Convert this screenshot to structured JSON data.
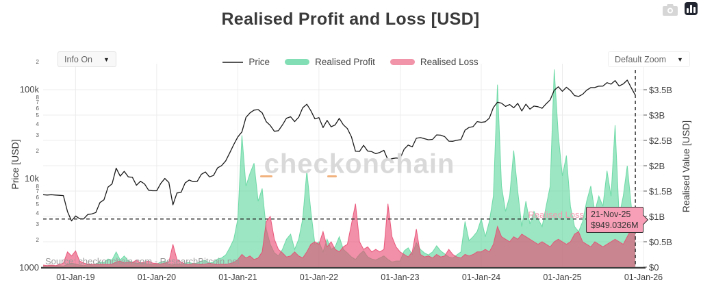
{
  "header": {
    "title": "Realised Profit and Loss [USD]"
  },
  "toolbar": {
    "camera_icon": "camera",
    "logo_icon": "plotly-bars"
  },
  "controls": {
    "info_dropdown": {
      "label": "Info On",
      "arrow": "▼"
    },
    "zoom_dropdown": {
      "label": "Default Zoom",
      "arrow": "▼"
    }
  },
  "legend": [
    {
      "label": "Price",
      "type": "line",
      "color": "#555555"
    },
    {
      "label": "Realised Profit",
      "type": "area",
      "color": "#82deb4"
    },
    {
      "label": "Realised Loss",
      "type": "area",
      "color": "#f193a9"
    }
  ],
  "watermark": {
    "text": "checkonchain"
  },
  "source": "Source: checkonchain.com - ResearchBitcoin.net",
  "annotations": {
    "loss_label": "Realised Loss",
    "tooltip": {
      "date": "21-Nov-25",
      "value": "$949.0326M"
    }
  },
  "chart_data": {
    "type": "line+area",
    "title": "Realised Profit and Loss [USD]",
    "x_unit": "decimal_year",
    "x_range": [
      2018.6,
      2026.0
    ],
    "x_start": 2018.6,
    "x_step": 0.05,
    "x_axis": {
      "ticks": [
        {
          "t": 2019,
          "label": "01-Jan-19"
        },
        {
          "t": 2020,
          "label": "01-Jan-20"
        },
        {
          "t": 2021,
          "label": "01-Jan-21"
        },
        {
          "t": 2022,
          "label": "01-Jan-22"
        },
        {
          "t": 2023,
          "label": "01-Jan-23"
        },
        {
          "t": 2024,
          "label": "01-Jan-24"
        },
        {
          "t": 2025,
          "label": "01-Jan-25"
        },
        {
          "t": 2026,
          "label": "01-Jan-26"
        }
      ]
    },
    "price_axis": {
      "title": "Price [USD]",
      "scale": "log",
      "ticks": [
        {
          "v": 1000,
          "label": "1000",
          "major": true
        },
        {
          "v": 2000,
          "label": "2"
        },
        {
          "v": 3000,
          "label": "3"
        },
        {
          "v": 4000,
          "label": "4"
        },
        {
          "v": 5000,
          "label": "5"
        },
        {
          "v": 6000,
          "label": "6"
        },
        {
          "v": 7000,
          "label": "7"
        },
        {
          "v": 8000,
          "label": "8"
        },
        {
          "v": 10000,
          "label": "10k",
          "major": true
        },
        {
          "v": 20000,
          "label": "2"
        },
        {
          "v": 30000,
          "label": "3"
        },
        {
          "v": 40000,
          "label": "4"
        },
        {
          "v": 50000,
          "label": "5"
        },
        {
          "v": 60000,
          "label": "6"
        },
        {
          "v": 70000,
          "label": "7"
        },
        {
          "v": 80000,
          "label": "8"
        },
        {
          "v": 100000,
          "label": "100k",
          "major": true
        },
        {
          "v": 200000,
          "label": "2"
        }
      ]
    },
    "value_axis": {
      "title": "Realised Value [USD]",
      "unit": "billion USD",
      "range": [
        0,
        4.0
      ],
      "ticks": [
        {
          "v": 0,
          "label": "$0"
        },
        {
          "v": 0.5,
          "label": "$0.5B"
        },
        {
          "v": 1,
          "label": "$1B"
        },
        {
          "v": 1.5,
          "label": "$1.5B"
        },
        {
          "v": 2,
          "label": "$2B"
        },
        {
          "v": 2.5,
          "label": "$2.5B"
        },
        {
          "v": 3,
          "label": "$3B"
        },
        {
          "v": 3.5,
          "label": "$3.5B"
        }
      ]
    },
    "reference_lines": {
      "horizontal_value_b": 0.949,
      "vertical_t": 2025.9
    },
    "series": [
      {
        "name": "Price",
        "type": "line",
        "axis": "price",
        "color": "#1a1a1a",
        "values": [
          6500,
          6450,
          6500,
          6450,
          6400,
          6350,
          4200,
          3300,
          3750,
          3500,
          3480,
          3900,
          3950,
          4100,
          5300,
          5700,
          7900,
          8600,
          12900,
          10500,
          11900,
          10300,
          10200,
          8300,
          9200,
          8600,
          7300,
          7200,
          7200,
          8700,
          9900,
          8900,
          5000,
          6800,
          6900,
          8800,
          9500,
          9100,
          9200,
          11000,
          11700,
          10300,
          10700,
          13000,
          13800,
          15600,
          19200,
          23800,
          29000,
          33000,
          48000,
          54000,
          58000,
          58800,
          54000,
          43000,
          39000,
          33500,
          34000,
          39500,
          47000,
          48800,
          43000,
          48200,
          61500,
          67500,
          57000,
          46200,
          47700,
          36900,
          44400,
          37700,
          39500,
          46800,
          39700,
          36000,
          29000,
          20000,
          19900,
          23300,
          20100,
          19800,
          18800,
          19400,
          20500,
          16000,
          16500,
          16800,
          16600,
          21100,
          23500,
          22400,
          28000,
          28500,
          27700,
          26900,
          27200,
          30500,
          30300,
          29200,
          26000,
          25900,
          26600,
          27000,
          34500,
          37000,
          37800,
          43000,
          42300,
          42900,
          47100,
          62000,
          71000,
          69400,
          63800,
          67000,
          61500,
          69000,
          56700,
          67500,
          59400,
          64300,
          63300,
          60800,
          68200,
          75600,
          97000,
          106100,
          94400,
          104700,
          96100,
          84400,
          82600,
          87200,
          97000,
          103800,
          103900,
          107800,
          108000,
          118000,
          113500,
          124300,
          108200,
          114000,
          125800,
          103000,
          85000
        ]
      },
      {
        "name": "Realised Profit",
        "type": "area",
        "axis": "value",
        "color": "#5fd69e",
        "fill_opacity": 0.62,
        "values": [
          0.02,
          0.02,
          0.03,
          0.02,
          0.03,
          0.02,
          0.05,
          0.08,
          0.06,
          0.04,
          0.03,
          0.05,
          0.04,
          0.06,
          0.1,
          0.09,
          0.16,
          0.14,
          0.3,
          0.14,
          0.22,
          0.12,
          0.1,
          0.07,
          0.09,
          0.07,
          0.06,
          0.05,
          0.06,
          0.1,
          0.12,
          0.05,
          0.04,
          0.06,
          0.05,
          0.08,
          0.09,
          0.07,
          0.08,
          0.12,
          0.13,
          0.08,
          0.1,
          0.16,
          0.18,
          0.24,
          0.38,
          0.55,
          0.95,
          2.6,
          1.6,
          1.85,
          2.05,
          1.3,
          1.55,
          0.75,
          0.45,
          0.28,
          0.22,
          0.35,
          0.55,
          0.65,
          0.35,
          0.55,
          0.95,
          1.9,
          1.1,
          0.45,
          0.5,
          0.3,
          0.55,
          0.35,
          0.4,
          0.6,
          0.35,
          0.28,
          0.2,
          0.15,
          0.25,
          0.32,
          0.2,
          0.16,
          0.14,
          0.18,
          0.22,
          0.15,
          0.1,
          0.12,
          0.12,
          0.32,
          0.38,
          0.25,
          0.48,
          0.35,
          0.28,
          0.24,
          0.3,
          0.42,
          0.32,
          0.26,
          0.2,
          0.18,
          0.24,
          0.3,
          0.9,
          0.52,
          0.6,
          0.7,
          0.95,
          0.6,
          0.9,
          1.4,
          3.6,
          1.6,
          1.1,
          1.4,
          2.3,
          1.5,
          0.8,
          1.3,
          0.85,
          1.1,
          0.95,
          0.8,
          1.2,
          1.6,
          3.9,
          2.6,
          1.8,
          2.2,
          1.2,
          0.8,
          0.7,
          0.9,
          1.3,
          1.6,
          1.1,
          1.4,
          1.2,
          1.9,
          1.4,
          2.8,
          1.0,
          1.4,
          2.0,
          1.2,
          0.85
        ]
      },
      {
        "name": "Realised Loss",
        "type": "area",
        "axis": "value",
        "color": "#e8466e",
        "fill_opacity": 0.6,
        "values": [
          0.04,
          0.03,
          0.04,
          0.03,
          0.05,
          0.08,
          0.3,
          0.22,
          0.32,
          0.12,
          0.08,
          0.06,
          0.05,
          0.06,
          0.05,
          0.06,
          0.05,
          0.06,
          0.1,
          0.12,
          0.08,
          0.1,
          0.09,
          0.14,
          0.08,
          0.1,
          0.12,
          0.08,
          0.07,
          0.06,
          0.08,
          0.1,
          0.45,
          0.15,
          0.1,
          0.06,
          0.05,
          0.07,
          0.06,
          0.05,
          0.06,
          0.08,
          0.06,
          0.05,
          0.06,
          0.05,
          0.07,
          0.09,
          0.15,
          0.25,
          0.18,
          0.22,
          0.15,
          0.18,
          0.3,
          0.9,
          1.0,
          0.55,
          0.35,
          0.28,
          0.2,
          0.22,
          0.3,
          0.22,
          0.18,
          0.3,
          0.45,
          0.5,
          0.45,
          0.7,
          0.4,
          0.5,
          0.35,
          0.3,
          0.4,
          0.45,
          0.85,
          1.25,
          0.5,
          0.35,
          0.4,
          0.3,
          0.35,
          0.3,
          0.35,
          1.25,
          0.6,
          0.4,
          0.3,
          0.25,
          0.2,
          0.3,
          0.75,
          0.25,
          0.2,
          0.22,
          0.18,
          0.25,
          0.2,
          0.22,
          0.35,
          0.25,
          0.2,
          0.18,
          0.25,
          0.22,
          0.25,
          0.3,
          0.3,
          0.35,
          0.3,
          0.45,
          0.8,
          0.6,
          0.55,
          0.5,
          0.6,
          0.55,
          0.65,
          0.6,
          0.55,
          0.5,
          0.45,
          0.5,
          0.45,
          0.4,
          0.5,
          0.55,
          0.5,
          0.45,
          0.5,
          0.65,
          0.7,
          0.5,
          0.45,
          0.4,
          0.5,
          0.45,
          0.4,
          0.45,
          0.5,
          0.55,
          0.5,
          0.45,
          0.6,
          0.75,
          0.949
        ]
      }
    ]
  }
}
